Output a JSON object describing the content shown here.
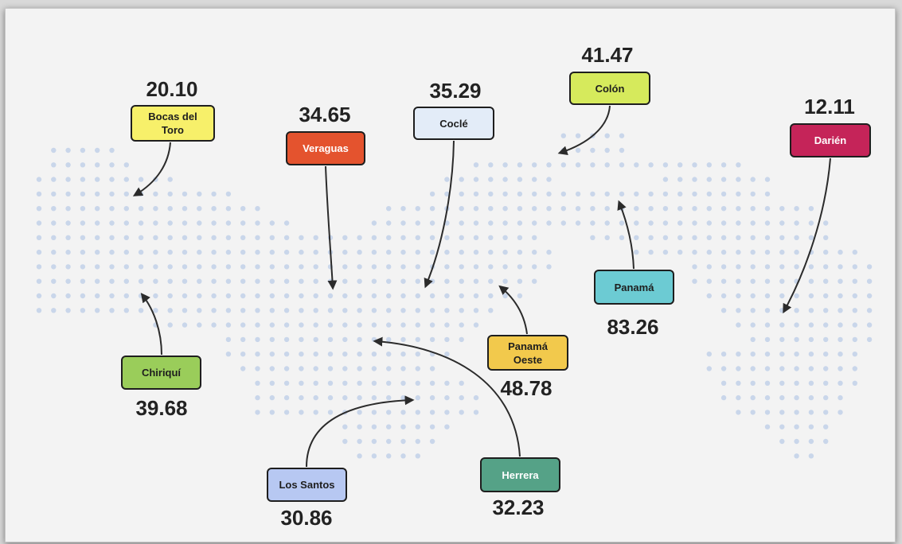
{
  "colors": {
    "background": "#f3f3f3",
    "dot": "#c9d6ea",
    "arrow": "#2b2b2b"
  },
  "regions": [
    {
      "id": "bocas-del-toro",
      "label": "Bocas del Toro",
      "value": "20.10",
      "color": "#f7f06a"
    },
    {
      "id": "veraguas",
      "label": "Veraguas",
      "value": "34.65",
      "color": "#e4532e"
    },
    {
      "id": "cocle",
      "label": "Coclé",
      "value": "35.29",
      "color": "#e3ecf8"
    },
    {
      "id": "colon",
      "label": "Colón",
      "value": "41.47",
      "color": "#d6ea5c"
    },
    {
      "id": "darien",
      "label": "Darién",
      "value": "12.11",
      "color": "#c52459"
    },
    {
      "id": "chiriqui",
      "label": "Chiriquí",
      "value": "39.68",
      "color": "#9acd5a"
    },
    {
      "id": "panama",
      "label": "Panamá",
      "value": "83.26",
      "color": "#6ccbd3"
    },
    {
      "id": "panama-oeste",
      "label": "Panamá Oeste",
      "value": "48.78",
      "color": "#f2c94c"
    },
    {
      "id": "los-santos",
      "label": "Los Santos",
      "value": "30.86",
      "color": "#b7c8f2"
    },
    {
      "id": "herrera",
      "label": "Herrera",
      "value": "32.23",
      "color": "#55a287"
    }
  ]
}
